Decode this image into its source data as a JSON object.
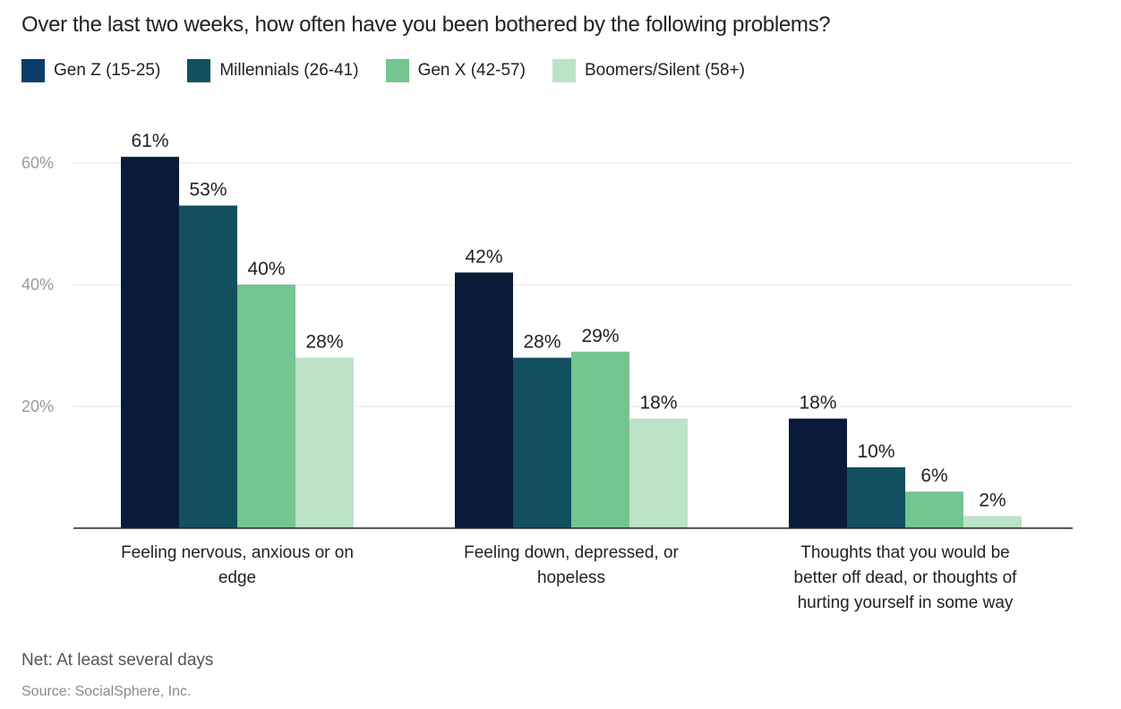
{
  "title": "Over the last two weeks, how often have you been bothered by the following problems?",
  "legend": [
    {
      "label": "Gen Z (15-25)",
      "color": "#0b3d6b"
    },
    {
      "label": "Millennials (26-41)",
      "color": "#12505f"
    },
    {
      "label": "Gen X (42-57)",
      "color": "#74c590"
    },
    {
      "label": "Boomers/Silent (58+)",
      "color": "#bce2c7"
    }
  ],
  "note": "Net: At least several days",
  "source": "Source: SocialSphere, Inc.",
  "chart_data": {
    "type": "bar",
    "categories": [
      [
        "Feeling nervous, anxious or on",
        "edge"
      ],
      [
        "Feeling down, depressed, or",
        "hopeless"
      ],
      [
        "Thoughts that you would be",
        "better off dead, or thoughts of",
        "hurting yourself in some way"
      ]
    ],
    "series": [
      {
        "name": "Gen Z (15-25)",
        "color": "#0a1b3a",
        "values": [
          61,
          42,
          18
        ]
      },
      {
        "name": "Millennials (26-41)",
        "color": "#12505f",
        "values": [
          53,
          28,
          10
        ]
      },
      {
        "name": "Gen X (42-57)",
        "color": "#74c590",
        "values": [
          40,
          29,
          6
        ]
      },
      {
        "name": "Boomers/Silent (58+)",
        "color": "#bce2c7",
        "values": [
          28,
          18,
          2
        ]
      }
    ],
    "value_suffix": "%",
    "y_ticks": [
      "20%",
      "40%",
      "60%"
    ],
    "y_tick_values": [
      20,
      40,
      60
    ],
    "ylim": [
      0,
      60
    ],
    "grid": true,
    "legend_position": "top-left",
    "xlabel": "",
    "ylabel": ""
  }
}
